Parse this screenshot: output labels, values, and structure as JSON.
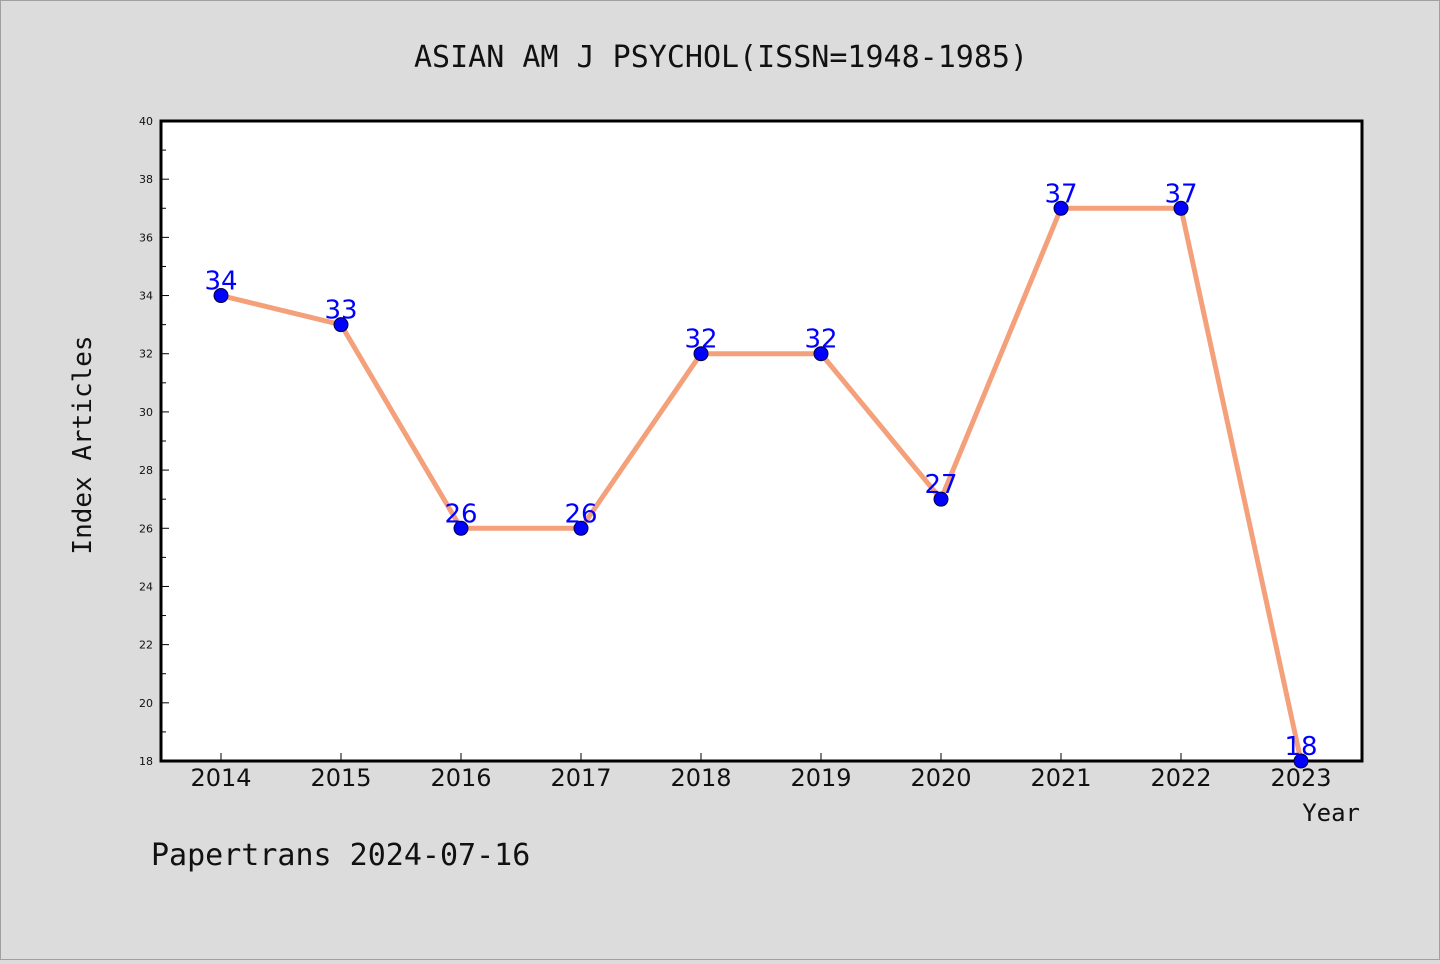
{
  "chart_data": {
    "type": "line",
    "title": "ASIAN AM J PSYCHOL(ISSN=1948-1985)",
    "xlabel": "Year",
    "ylabel": "Index Articles",
    "categories": [
      "2014",
      "2015",
      "2016",
      "2017",
      "2018",
      "2019",
      "2020",
      "2021",
      "2022",
      "2023"
    ],
    "series": [
      {
        "values": [
          34,
          33,
          26,
          26,
          32,
          32,
          27,
          37,
          37,
          18
        ]
      }
    ],
    "data_labels": [
      "34",
      "33",
      "26",
      "26",
      "32",
      "32",
      "27",
      "37",
      "37",
      "18"
    ],
    "ylim": [
      18,
      40
    ],
    "yticks": [
      "18",
      "20",
      "22",
      "24",
      "26",
      "28",
      "30",
      "32",
      "34",
      "36",
      "38",
      "40"
    ],
    "grid": false,
    "line_color": "#f4a07a",
    "marker_color": "#0000ff",
    "label_color": "#0000ff"
  },
  "footer": "Papertrans 2024-07-16"
}
